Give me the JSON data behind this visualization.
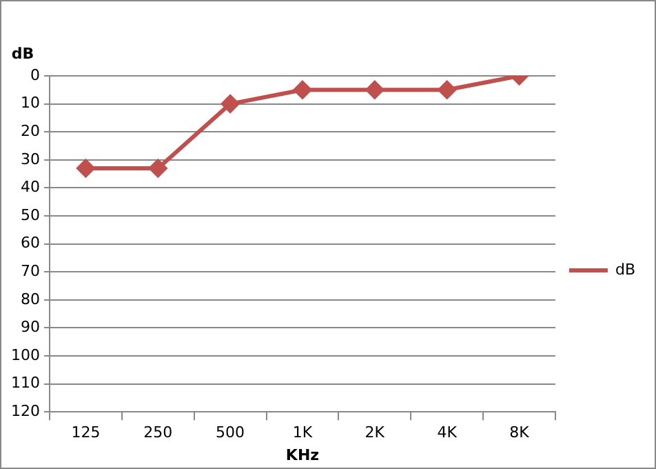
{
  "chart_data": {
    "type": "line",
    "ylabel": "dB",
    "xlabel": "KHz",
    "categories": [
      "125",
      "250",
      "500",
      "1K",
      "2K",
      "4K",
      "8K"
    ],
    "series": [
      {
        "name": "dB",
        "color": "#c0504d",
        "values": [
          33,
          33,
          10,
          5,
          5,
          5,
          0
        ]
      }
    ],
    "ylim": [
      120,
      0
    ],
    "yticks": [
      0,
      10,
      20,
      30,
      40,
      50,
      60,
      70,
      80,
      90,
      100,
      110,
      120
    ],
    "grid": "y",
    "legend": "right",
    "marker": "diamond",
    "line_style": "solid"
  }
}
